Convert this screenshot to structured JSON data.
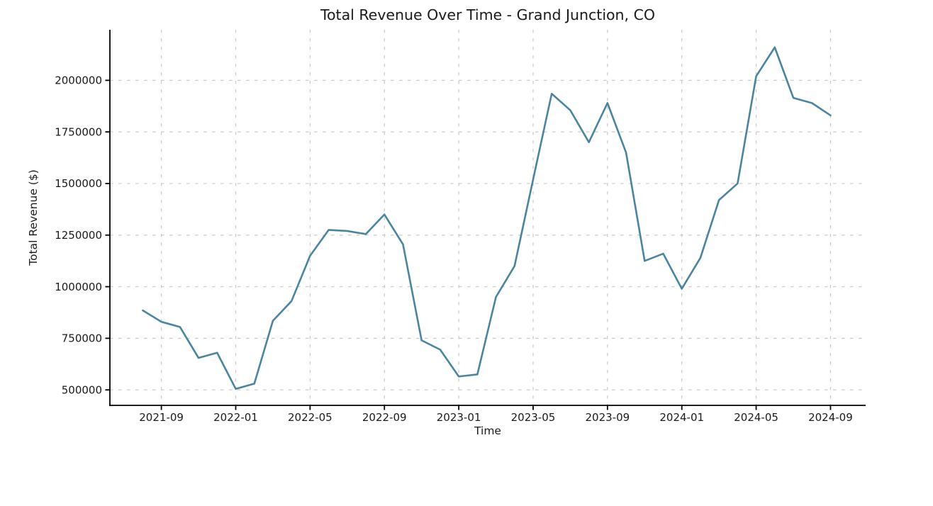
{
  "chart_data": {
    "type": "line",
    "title": "Total Revenue Over Time - Grand Junction, CO",
    "xlabel": "Time",
    "ylabel": "Total Revenue ($)",
    "x": [
      "2021-08",
      "2021-09",
      "2021-10",
      "2021-11",
      "2021-12",
      "2022-01",
      "2022-02",
      "2022-03",
      "2022-04",
      "2022-05",
      "2022-06",
      "2022-07",
      "2022-08",
      "2022-09",
      "2022-10",
      "2022-11",
      "2022-12",
      "2023-01",
      "2023-02",
      "2023-03",
      "2023-04",
      "2023-05",
      "2023-06",
      "2023-07",
      "2023-08",
      "2023-09",
      "2023-10",
      "2023-11",
      "2023-12",
      "2024-01",
      "2024-02",
      "2024-03",
      "2024-04",
      "2024-05",
      "2024-06",
      "2024-07",
      "2024-08",
      "2024-09"
    ],
    "values": [
      885000,
      830000,
      805000,
      655000,
      680000,
      505000,
      530000,
      835000,
      930000,
      1150000,
      1275000,
      1270000,
      1255000,
      1350000,
      1205000,
      740000,
      695000,
      565000,
      575000,
      950000,
      1100000,
      1520000,
      1935000,
      1855000,
      1700000,
      1890000,
      1650000,
      1125000,
      1160000,
      990000,
      1140000,
      1420000,
      1500000,
      2020000,
      2160000,
      1915000,
      1890000,
      1830000
    ],
    "xtick_labels": [
      "2021-09",
      "2022-01",
      "2022-05",
      "2022-09",
      "2023-01",
      "2023-05",
      "2023-09",
      "2024-01",
      "2024-05",
      "2024-09"
    ],
    "ytick_values": [
      500000,
      750000,
      1000000,
      1250000,
      1500000,
      1750000,
      2000000
    ],
    "ytick_labels": [
      "500000",
      "750000",
      "1000000",
      "1250000",
      "1500000",
      "1750000",
      "2000000"
    ],
    "ylim": [
      425000,
      2245000
    ],
    "grid": "dashed-both-axes",
    "legend": "none",
    "colors": {
      "line": "#4a85a0",
      "grid": "#c9c9c9",
      "spine": "#000000",
      "text": "#1a1a1a",
      "background": "#ffffff"
    }
  }
}
